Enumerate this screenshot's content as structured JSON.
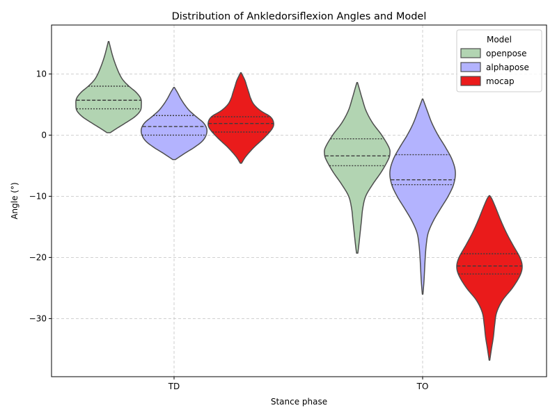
{
  "chart_data": {
    "type": "violin",
    "title": "Distribution of Ankledorsiflexion Angles and Model",
    "xlabel": "Stance phase",
    "ylabel": "Angle (°)",
    "categories": [
      "TD",
      "TO"
    ],
    "ylim": [
      -39.5,
      18
    ],
    "yticks": [
      10,
      0,
      -10,
      -20,
      -30
    ],
    "ytick_labels": [
      "10",
      "0",
      "−10",
      "−20",
      "−30"
    ],
    "grid": true,
    "legend": {
      "title": "Model",
      "placement": "top-right"
    },
    "series": [
      {
        "name": "openpose",
        "color": "#b2d4b2",
        "groups": [
          {
            "category": "TD",
            "min": 0.4,
            "max": 15.3,
            "q1": 4.3,
            "median": 5.7,
            "q3": 8.0,
            "profile": [
              [
                0.4,
                0.05
              ],
              [
                1.0,
                0.22
              ],
              [
                2.0,
                0.52
              ],
              [
                3.0,
                0.8
              ],
              [
                4.0,
                0.97
              ],
              [
                5.0,
                1.0
              ],
              [
                6.0,
                0.98
              ],
              [
                7.0,
                0.84
              ],
              [
                8.0,
                0.62
              ],
              [
                9.0,
                0.44
              ],
              [
                10.0,
                0.33
              ],
              [
                11.0,
                0.25
              ],
              [
                12.0,
                0.18
              ],
              [
                13.0,
                0.12
              ],
              [
                14.0,
                0.07
              ],
              [
                15.3,
                0.01
              ]
            ]
          },
          {
            "category": "TO",
            "min": -19.3,
            "max": 8.6,
            "q1": -5.0,
            "median": -3.4,
            "q3": -0.6,
            "profile": [
              [
                -19.3,
                0.02
              ],
              [
                -18.0,
                0.05
              ],
              [
                -16.0,
                0.09
              ],
              [
                -14.0,
                0.13
              ],
              [
                -12.0,
                0.17
              ],
              [
                -10.0,
                0.26
              ],
              [
                -8.0,
                0.48
              ],
              [
                -6.0,
                0.74
              ],
              [
                -4.0,
                0.95
              ],
              [
                -3.0,
                1.0
              ],
              [
                -2.0,
                0.97
              ],
              [
                0.0,
                0.75
              ],
              [
                2.0,
                0.47
              ],
              [
                4.0,
                0.27
              ],
              [
                6.0,
                0.15
              ],
              [
                7.5,
                0.07
              ],
              [
                8.6,
                0.01
              ]
            ]
          }
        ]
      },
      {
        "name": "alphapose",
        "color": "#b3b3fe",
        "groups": [
          {
            "category": "TD",
            "min": -4.0,
            "max": 7.8,
            "q1": 0.0,
            "median": 1.4,
            "q3": 3.2,
            "profile": [
              [
                -4.0,
                0.04
              ],
              [
                -3.0,
                0.32
              ],
              [
                -2.0,
                0.62
              ],
              [
                -1.0,
                0.86
              ],
              [
                0.0,
                0.98
              ],
              [
                1.0,
                1.0
              ],
              [
                2.0,
                0.9
              ],
              [
                3.0,
                0.68
              ],
              [
                4.0,
                0.47
              ],
              [
                5.0,
                0.32
              ],
              [
                6.0,
                0.2
              ],
              [
                7.0,
                0.1
              ],
              [
                7.8,
                0.01
              ]
            ]
          },
          {
            "category": "TO",
            "min": -26.0,
            "max": 5.9,
            "q1": -8.1,
            "median": -7.3,
            "q3": -3.2,
            "profile": [
              [
                -26.0,
                0.01
              ],
              [
                -24.0,
                0.04
              ],
              [
                -22.0,
                0.06
              ],
              [
                -20.0,
                0.08
              ],
              [
                -18.0,
                0.11
              ],
              [
                -16.0,
                0.17
              ],
              [
                -14.0,
                0.33
              ],
              [
                -12.0,
                0.55
              ],
              [
                -10.0,
                0.78
              ],
              [
                -8.0,
                0.95
              ],
              [
                -6.0,
                1.0
              ],
              [
                -4.0,
                0.9
              ],
              [
                -2.0,
                0.7
              ],
              [
                0.0,
                0.47
              ],
              [
                2.0,
                0.28
              ],
              [
                4.0,
                0.14
              ],
              [
                5.9,
                0.01
              ]
            ]
          }
        ]
      },
      {
        "name": "mocap",
        "color": "#ea1b1b",
        "groups": [
          {
            "category": "TD",
            "min": -4.6,
            "max": 10.2,
            "q1": 0.5,
            "median": 1.9,
            "q3": 3.0,
            "profile": [
              [
                -4.6,
                0.02
              ],
              [
                -3.5,
                0.15
              ],
              [
                -2.0,
                0.4
              ],
              [
                -0.5,
                0.7
              ],
              [
                1.0,
                0.95
              ],
              [
                2.0,
                1.0
              ],
              [
                3.0,
                0.9
              ],
              [
                4.0,
                0.6
              ],
              [
                5.0,
                0.4
              ],
              [
                6.0,
                0.3
              ],
              [
                7.0,
                0.24
              ],
              [
                8.0,
                0.18
              ],
              [
                9.0,
                0.12
              ],
              [
                10.2,
                0.01
              ]
            ]
          },
          {
            "category": "TO",
            "min": -36.8,
            "max": -9.9,
            "q1": -22.7,
            "median": -21.4,
            "q3": -19.4,
            "profile": [
              [
                -36.8,
                0.01
              ],
              [
                -35.0,
                0.06
              ],
              [
                -33.0,
                0.12
              ],
              [
                -31.0,
                0.16
              ],
              [
                -29.0,
                0.22
              ],
              [
                -27.0,
                0.4
              ],
              [
                -25.0,
                0.7
              ],
              [
                -23.0,
                0.93
              ],
              [
                -21.5,
                1.0
              ],
              [
                -20.0,
                0.93
              ],
              [
                -18.0,
                0.72
              ],
              [
                -16.0,
                0.52
              ],
              [
                -14.0,
                0.35
              ],
              [
                -12.0,
                0.2
              ],
              [
                -10.5,
                0.08
              ],
              [
                -9.9,
                0.01
              ]
            ]
          }
        ]
      }
    ]
  }
}
